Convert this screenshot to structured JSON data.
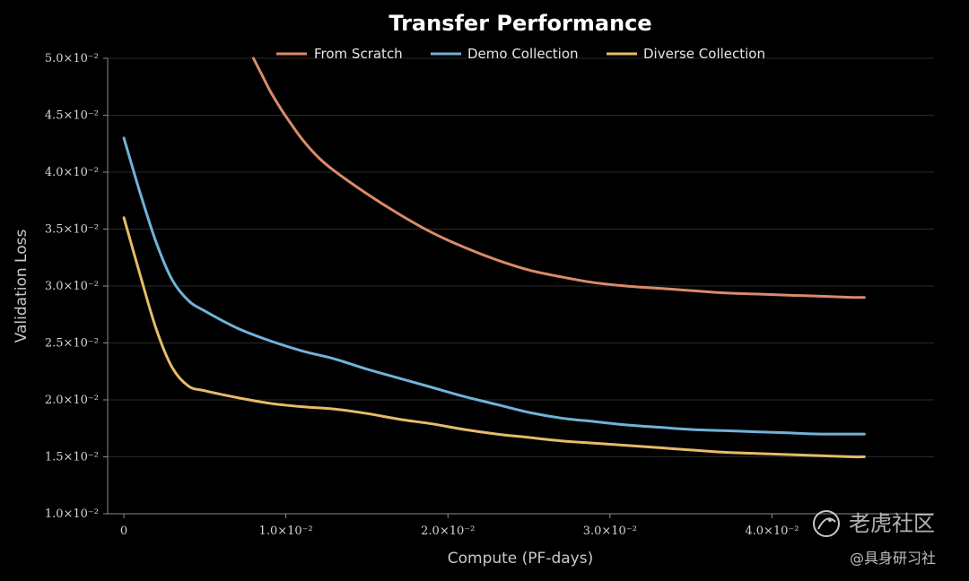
{
  "chart_data": {
    "type": "line",
    "title": "Transfer Performance",
    "xlabel": "Compute (PF-days)",
    "ylabel": "Validation Loss",
    "xlim": [
      -0.001,
      0.05
    ],
    "ylim": [
      0.01,
      0.05
    ],
    "x_ticks": [
      0,
      0.01,
      0.02,
      0.03,
      0.04
    ],
    "x_tick_labels": [
      "0",
      "1.0×10⁻²",
      "2.0×10⁻²",
      "3.0×10⁻²",
      "4.0×10⁻²"
    ],
    "y_ticks": [
      0.01,
      0.015,
      0.02,
      0.025,
      0.03,
      0.035,
      0.04,
      0.045,
      0.05
    ],
    "y_tick_labels": [
      "1.0×10⁻²",
      "1.5×10⁻²",
      "2.0×10⁻²",
      "2.5×10⁻²",
      "3.0×10⁻²",
      "3.5×10⁻²",
      "4.0×10⁻²",
      "4.5×10⁻²",
      "5.0×10⁻²"
    ],
    "grid": true,
    "legend_position": "top-center",
    "series": [
      {
        "name": "From Scratch",
        "color": "#d98b6a",
        "x": [
          0.008,
          0.0085,
          0.009,
          0.0095,
          0.01,
          0.011,
          0.012,
          0.013,
          0.015,
          0.017,
          0.019,
          0.021,
          0.023,
          0.025,
          0.027,
          0.029,
          0.031,
          0.033,
          0.035,
          0.037,
          0.039,
          0.041,
          0.043,
          0.045,
          0.0457
        ],
        "y": [
          0.05,
          0.0486,
          0.0472,
          0.046,
          0.0449,
          0.0429,
          0.0413,
          0.0401,
          0.0381,
          0.0363,
          0.0347,
          0.0334,
          0.0323,
          0.0314,
          0.0308,
          0.0303,
          0.03,
          0.0298,
          0.0296,
          0.0294,
          0.0293,
          0.0292,
          0.0291,
          0.029,
          0.029
        ]
      },
      {
        "name": "Demo Collection",
        "color": "#6fb3d8",
        "x": [
          0,
          0.001,
          0.002,
          0.003,
          0.004,
          0.005,
          0.007,
          0.009,
          0.011,
          0.013,
          0.015,
          0.017,
          0.019,
          0.021,
          0.023,
          0.025,
          0.027,
          0.029,
          0.031,
          0.033,
          0.035,
          0.037,
          0.039,
          0.041,
          0.043,
          0.045,
          0.0457
        ],
        "y": [
          0.043,
          0.0382,
          0.0338,
          0.0305,
          0.0287,
          0.0278,
          0.0263,
          0.0252,
          0.0243,
          0.0236,
          0.0227,
          0.0219,
          0.0211,
          0.0203,
          0.0196,
          0.0189,
          0.0184,
          0.0181,
          0.0178,
          0.0176,
          0.0174,
          0.0173,
          0.0172,
          0.0171,
          0.017,
          0.017,
          0.017
        ]
      },
      {
        "name": "Diverse Collection",
        "color": "#e6bb6a",
        "x": [
          0,
          0.001,
          0.002,
          0.003,
          0.004,
          0.005,
          0.007,
          0.009,
          0.011,
          0.013,
          0.015,
          0.017,
          0.019,
          0.021,
          0.023,
          0.025,
          0.027,
          0.029,
          0.031,
          0.033,
          0.035,
          0.037,
          0.039,
          0.041,
          0.043,
          0.045,
          0.0457
        ],
        "y": [
          0.036,
          0.031,
          0.0262,
          0.0228,
          0.0212,
          0.0208,
          0.0202,
          0.0197,
          0.0194,
          0.0192,
          0.0188,
          0.0183,
          0.0179,
          0.0174,
          0.017,
          0.0167,
          0.0164,
          0.0162,
          0.016,
          0.0158,
          0.0156,
          0.0154,
          0.0153,
          0.0152,
          0.0151,
          0.015,
          0.015
        ]
      }
    ]
  },
  "watermark": {
    "main": "老虎社区",
    "sub": "@具身研习社"
  }
}
